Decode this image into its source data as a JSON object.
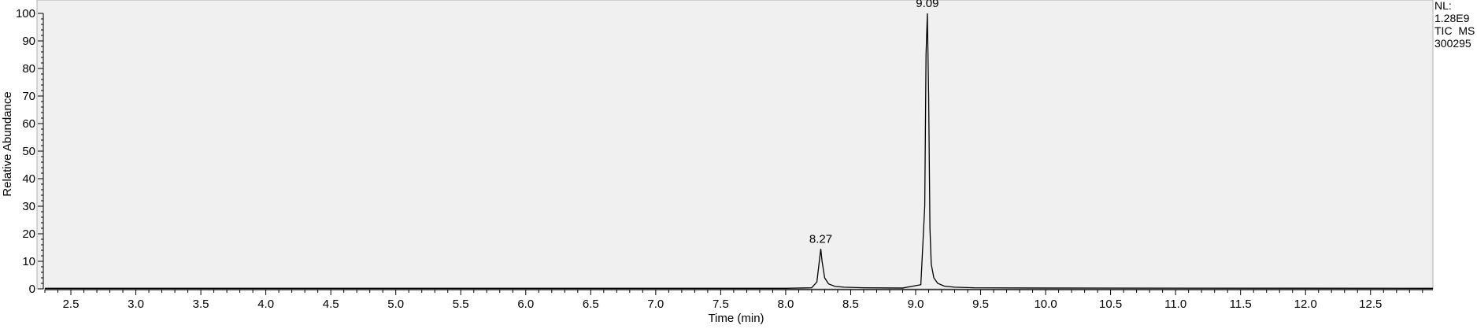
{
  "chart_data": {
    "type": "line",
    "xlabel": "Time (min)",
    "ylabel": "Relative Abundance",
    "xlim": [
      2.3,
      12.98
    ],
    "ylim": [
      0,
      100
    ],
    "x_ticks": [
      "2.5",
      "3.0",
      "3.5",
      "4.0",
      "4.5",
      "5.0",
      "5.5",
      "6.0",
      "6.5",
      "7.0",
      "7.5",
      "8.0",
      "8.5",
      "9.0",
      "9.5",
      "10.0",
      "10.5",
      "11.0",
      "11.5",
      "12.0",
      "12.5"
    ],
    "y_ticks": [
      "0",
      "10",
      "20",
      "30",
      "40",
      "50",
      "60",
      "70",
      "80",
      "90",
      "100"
    ],
    "grid": false,
    "background": "#f0f0f0",
    "line_color": "#000000",
    "peaks": [
      {
        "label": "8.27",
        "x": 8.27,
        "y": 14.5
      },
      {
        "label": "9.09",
        "x": 9.09,
        "y": 100
      }
    ],
    "series": [
      {
        "x": [
          2.3,
          8.0,
          8.2,
          8.24,
          8.26,
          8.27,
          8.28,
          8.3,
          8.33,
          8.38,
          8.45,
          8.6,
          8.9,
          9.04,
          9.07,
          9.08,
          9.09,
          9.1,
          9.11,
          9.12,
          9.14,
          9.17,
          9.22,
          9.3,
          9.45,
          10.0,
          12.98
        ],
        "y": [
          0.2,
          0.2,
          0.4,
          2.5,
          10.5,
          14.5,
          10.0,
          4.0,
          1.8,
          0.9,
          0.6,
          0.4,
          0.3,
          1.5,
          30.0,
          85.0,
          100,
          70.0,
          22.0,
          9.0,
          4.0,
          2.0,
          1.0,
          0.6,
          0.4,
          0.3,
          0.2
        ]
      }
    ]
  },
  "info": {
    "lines": [
      "NL:",
      "1.28E9",
      "TIC  MS",
      "300295"
    ]
  }
}
